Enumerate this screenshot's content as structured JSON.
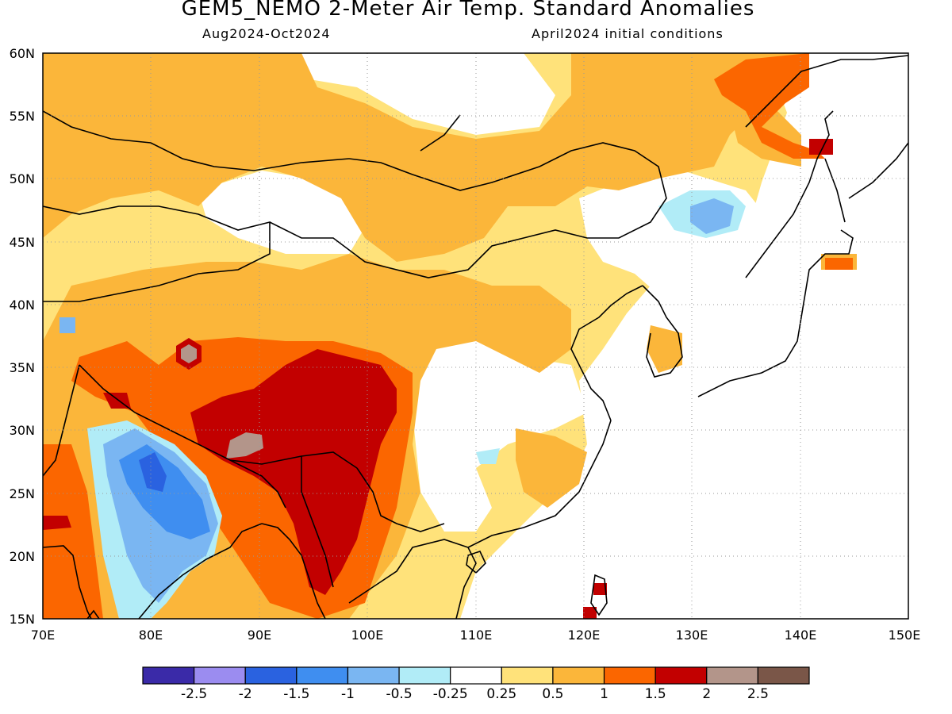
{
  "title": "GEM5_NEMO 2-Meter Air Temp. Standard Anomalies",
  "subtitle_left": "Aug2024-Oct2024",
  "subtitle_right": "April2024 initial conditions",
  "map": {
    "lon_range": [
      70,
      150
    ],
    "lat_range": [
      15,
      60
    ],
    "lon_ticks": [
      "70E",
      "80E",
      "90E",
      "100E",
      "110E",
      "120E",
      "130E",
      "140E",
      "150E"
    ],
    "lat_ticks": [
      "15N",
      "20N",
      "25N",
      "30N",
      "35N",
      "40N",
      "45N",
      "50N",
      "55N",
      "60N"
    ],
    "gridlines": "dotted"
  },
  "colorbar": {
    "colors": [
      "#3a2aa8",
      "#9b8cf0",
      "#2a62e0",
      "#3f8ef0",
      "#7ab6f2",
      "#b1ecf7",
      "#ffffff",
      "#ffe27a",
      "#fbb63a",
      "#fb6600",
      "#c20000",
      "#b3958a",
      "#7a5648"
    ],
    "labels": [
      "-2.5",
      "-2",
      "-1.5",
      "-1",
      "-0.5",
      "-0.25",
      "0.25",
      "0.5",
      "1",
      "1.5",
      "2",
      "2.5"
    ]
  },
  "fields": {
    "lightorange": "#ffe27a",
    "orange": "#fbb63a",
    "darkorange": "#fb6600",
    "red": "#c20000",
    "tan": "#b3958a",
    "brown": "#7a5648",
    "lightblue": "#b1ecf7",
    "midblue": "#7ab6f2",
    "blue": "#3f8ef0"
  }
}
